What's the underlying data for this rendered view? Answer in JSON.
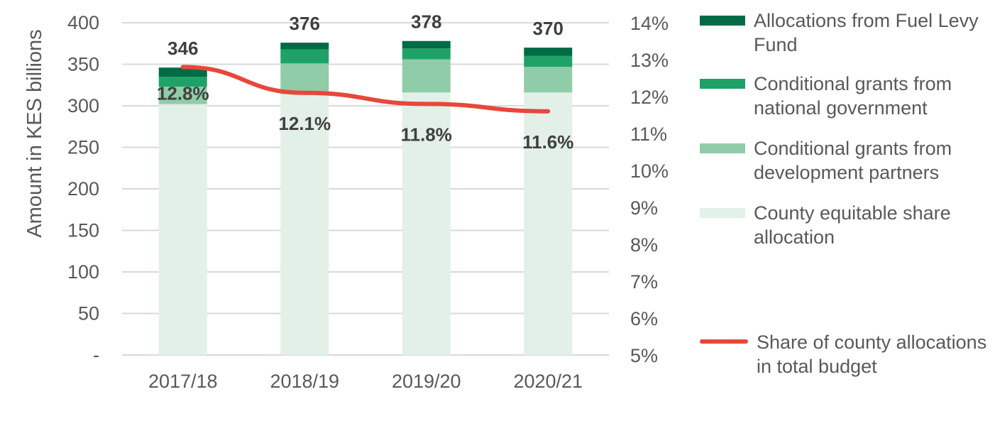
{
  "chart_data": {
    "type": "bar",
    "stacked": true,
    "categories": [
      "2017/18",
      "2018/19",
      "2019/20",
      "2020/21"
    ],
    "ylabel": "Amount in KES billions",
    "ylim": [
      0,
      400
    ],
    "yticks": [
      "-",
      "50",
      "100",
      "150",
      "200",
      "250",
      "300",
      "350",
      "400"
    ],
    "y2lim": [
      5,
      14
    ],
    "y2ticks": [
      "5%",
      "6%",
      "7%",
      "8%",
      "9%",
      "10%",
      "11%",
      "12%",
      "13%",
      "14%"
    ],
    "grid": true,
    "legend_position": "right",
    "series": [
      {
        "name": "County equitable share allocation",
        "color": "#e2f0e8",
        "values": [
          302,
          314,
          316,
          316
        ]
      },
      {
        "name": "Conditional grants from development partners",
        "color": "#91cca9",
        "values": [
          21,
          37,
          40,
          31
        ]
      },
      {
        "name": "Conditional grants from national government",
        "color": "#1ea267",
        "values": [
          12,
          17,
          13,
          13
        ]
      },
      {
        "name": "Allocations from Fuel Levy Fund",
        "color": "#006b45",
        "values": [
          11,
          8,
          9,
          10
        ]
      }
    ],
    "totals": [
      "346",
      "376",
      "378",
      "370"
    ],
    "line": {
      "name": "Share of county allocations in total budget",
      "color": "#e8473a",
      "values": [
        12.8,
        12.1,
        11.8,
        11.6
      ],
      "labels": [
        "12.8%",
        "12.1%",
        "11.8%",
        "11.6%"
      ]
    },
    "legend_order": [
      "Allocations from Fuel Levy Fund",
      "Conditional grants from national government",
      "Conditional grants from development partners",
      "County equitable share allocation",
      "Share of county allocations in total budget"
    ]
  }
}
